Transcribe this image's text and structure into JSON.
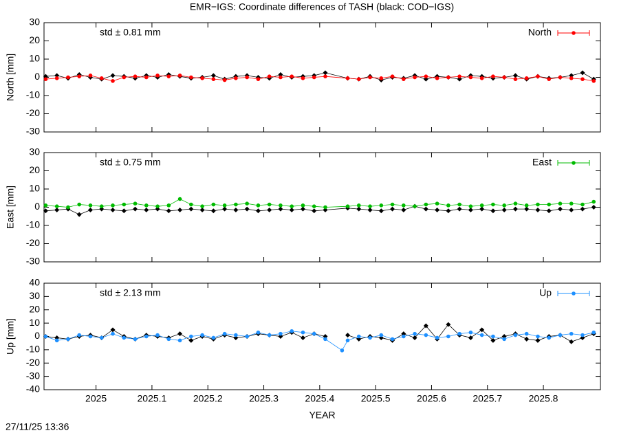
{
  "footer": "27/11/25 13:36",
  "chart_data": [
    {
      "type": "line",
      "title": "EMR−IGS: Coordinate differences of TASH (black: COD−IGS)",
      "ylabel": "North [mm]",
      "annotation": "std ± 0.81 mm",
      "annotation_color": "#ff0000",
      "legend": "upper right",
      "x": [
        2024.91,
        2024.93,
        2024.95,
        2024.97,
        2024.99,
        2025.01,
        2025.03,
        2025.05,
        2025.07,
        2025.09,
        2025.11,
        2025.13,
        2025.15,
        2025.17,
        2025.19,
        2025.21,
        2025.23,
        2025.25,
        2025.27,
        2025.29,
        2025.31,
        2025.33,
        2025.35,
        2025.37,
        2025.39,
        2025.41,
        2025.45,
        2025.47,
        2025.49,
        2025.51,
        2025.53,
        2025.55,
        2025.57,
        2025.59,
        2025.61,
        2025.63,
        2025.65,
        2025.67,
        2025.69,
        2025.71,
        2025.73,
        2025.75,
        2025.77,
        2025.79,
        2025.81,
        2025.83,
        2025.85,
        2025.87,
        2025.89
      ],
      "ylim": [
        -30,
        30
      ],
      "yticks": [
        -30,
        -20,
        -10,
        0,
        10,
        20,
        30
      ],
      "series": [
        {
          "color": "#000000",
          "marker": "diamond",
          "values": [
            0.5,
            1,
            -0.5,
            1.5,
            0,
            -1,
            1,
            0.5,
            -0.5,
            1,
            0,
            1.5,
            0.5,
            -0.5,
            0,
            1,
            -1,
            0.5,
            1,
            0,
            -0.5,
            1.5,
            0,
            0.5,
            1,
            2.5,
            -0.5,
            -1,
            0.5,
            -1.5,
            0,
            -0.5,
            1,
            -1,
            0.5,
            0,
            -1,
            1,
            0.5,
            -0.5,
            0,
            1,
            -1,
            0.5,
            -0.5,
            0,
            1,
            2.5,
            -1
          ]
        },
        {
          "name": "North",
          "color": "#ff0000",
          "marker": "circle",
          "values": [
            -1,
            -0.5,
            0,
            0.5,
            1,
            -0.5,
            -2,
            0,
            0.5,
            0,
            1,
            0.5,
            1,
            0,
            -0.5,
            -1,
            -1.5,
            -0.5,
            0,
            -1,
            0.5,
            0,
            0.5,
            -0.5,
            0,
            0.5,
            -0.5,
            -1,
            0,
            -0.5,
            0.5,
            -1,
            0,
            0.5,
            -0.5,
            0,
            0.5,
            0,
            -0.5,
            0.5,
            0,
            -1,
            -0.5,
            0.5,
            -1,
            0,
            -0.5,
            -1,
            -2
          ]
        }
      ]
    },
    {
      "type": "line",
      "ylabel": "East [mm]",
      "annotation": "std ± 0.75 mm",
      "annotation_color": "#00bb00",
      "legend": "upper right",
      "x": [
        2024.91,
        2024.93,
        2024.95,
        2024.97,
        2024.99,
        2025.01,
        2025.03,
        2025.05,
        2025.07,
        2025.09,
        2025.11,
        2025.13,
        2025.15,
        2025.17,
        2025.19,
        2025.21,
        2025.23,
        2025.25,
        2025.27,
        2025.29,
        2025.31,
        2025.33,
        2025.35,
        2025.37,
        2025.39,
        2025.41,
        2025.45,
        2025.47,
        2025.49,
        2025.51,
        2025.53,
        2025.55,
        2025.57,
        2025.59,
        2025.61,
        2025.63,
        2025.65,
        2025.67,
        2025.69,
        2025.71,
        2025.73,
        2025.75,
        2025.77,
        2025.79,
        2025.81,
        2025.83,
        2025.85,
        2025.87,
        2025.89
      ],
      "ylim": [
        -30,
        30
      ],
      "yticks": [
        -30,
        -20,
        -10,
        0,
        10,
        20,
        30
      ],
      "series": [
        {
          "color": "#000000",
          "marker": "diamond",
          "values": [
            -2,
            -1.5,
            -1,
            -4,
            -1.5,
            -1,
            -1.5,
            -2,
            -1,
            -1.5,
            -1,
            -2,
            -1.5,
            -1,
            -1.5,
            -2,
            -1,
            -1.5,
            -1,
            -2,
            -1.5,
            -1,
            -1.5,
            -1,
            -2,
            -1.5,
            -0.5,
            -1,
            -1.5,
            -2,
            -1,
            -1.5,
            0.5,
            -1,
            -1.5,
            -2,
            -1,
            -1.5,
            -1,
            -2,
            -1.5,
            -1,
            -1,
            -1.5,
            -2,
            -1,
            -1.5,
            -1,
            0
          ]
        },
        {
          "name": "East",
          "color": "#00bb00",
          "marker": "circle",
          "values": [
            1,
            0.5,
            0,
            1.5,
            1,
            0.5,
            1,
            1.5,
            2,
            1,
            0.5,
            1,
            4.5,
            1.5,
            0.5,
            1.5,
            1,
            1.5,
            2,
            1,
            1.5,
            1,
            0.5,
            1,
            0.5,
            0,
            0.5,
            1,
            0.5,
            1,
            1.5,
            1,
            0.5,
            1.5,
            2,
            1,
            1.5,
            0.5,
            1,
            1.5,
            1,
            2,
            1,
            1.5,
            1.5,
            2,
            2,
            1.5,
            3
          ]
        }
      ]
    },
    {
      "type": "line",
      "ylabel": "Up [mm]",
      "xlabel": "YEAR",
      "annotation": "std ± 2.13 mm",
      "annotation_color": "#1e90ff",
      "legend": "upper right",
      "x": [
        2024.91,
        2024.93,
        2024.95,
        2024.97,
        2024.99,
        2025.01,
        2025.03,
        2025.05,
        2025.07,
        2025.09,
        2025.11,
        2025.13,
        2025.15,
        2025.17,
        2025.19,
        2025.21,
        2025.23,
        2025.25,
        2025.27,
        2025.29,
        2025.31,
        2025.33,
        2025.35,
        2025.37,
        2025.39,
        2025.41,
        2025.44,
        2025.45,
        2025.47,
        2025.49,
        2025.51,
        2025.53,
        2025.55,
        2025.57,
        2025.59,
        2025.61,
        2025.63,
        2025.65,
        2025.67,
        2025.69,
        2025.71,
        2025.73,
        2025.75,
        2025.77,
        2025.79,
        2025.81,
        2025.83,
        2025.85,
        2025.87,
        2025.89
      ],
      "xlim": [
        2024.907,
        2025.902
      ],
      "xticks": [
        2025,
        2025.1,
        2025.2,
        2025.3,
        2025.4,
        2025.5,
        2025.6,
        2025.7,
        2025.8
      ],
      "ylim": [
        -40,
        40
      ],
      "yticks": [
        -40,
        -30,
        -20,
        -10,
        0,
        10,
        20,
        30,
        40
      ],
      "series": [
        {
          "color": "#000000",
          "marker": "diamond",
          "values": [
            0,
            -1,
            -2,
            0,
            1,
            -1,
            5,
            0,
            -2,
            1,
            0,
            -1,
            2,
            -3,
            0,
            -2,
            1,
            -1,
            0,
            2,
            1,
            0,
            3,
            -1,
            2,
            0,
            null,
            1,
            -2,
            0,
            -1,
            -3,
            2,
            -1,
            8,
            -2,
            9,
            1,
            -1,
            5,
            -3,
            0,
            2,
            -2,
            -3,
            0,
            1,
            -4,
            -1,
            2
          ]
        },
        {
          "name": "Up",
          "color": "#1e90ff",
          "marker": "circle",
          "values": [
            0,
            -3,
            -2,
            1,
            0,
            -1,
            2,
            -1,
            -2,
            0,
            1,
            -2,
            -3,
            0,
            1,
            -1,
            2,
            1,
            0,
            3,
            1,
            2,
            4,
            3,
            2,
            -2,
            -10.5,
            -3,
            0,
            -1,
            1,
            -2,
            0,
            2,
            1,
            -1,
            0,
            2,
            3,
            1,
            0,
            -2,
            1,
            2,
            0,
            -1,
            1,
            2,
            1,
            3
          ]
        }
      ]
    }
  ]
}
